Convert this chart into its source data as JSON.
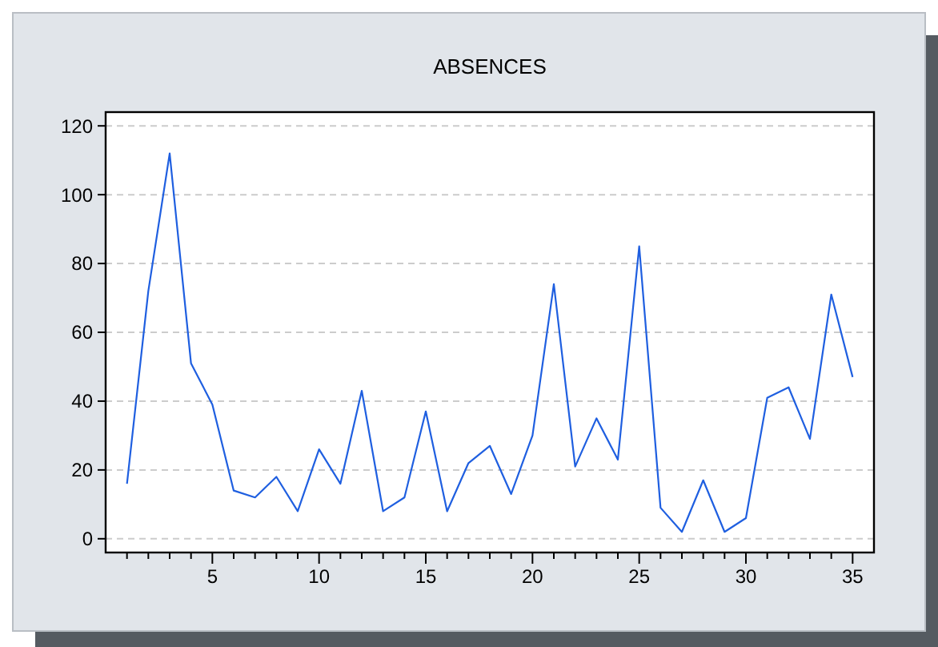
{
  "chart_data": {
    "type": "line",
    "title": "ABSENCES",
    "x": [
      1,
      2,
      3,
      4,
      5,
      6,
      7,
      8,
      9,
      10,
      11,
      12,
      13,
      14,
      15,
      16,
      17,
      18,
      19,
      20,
      21,
      22,
      23,
      24,
      25,
      26,
      27,
      28,
      29,
      30,
      31,
      32,
      33,
      34,
      35
    ],
    "series": [
      {
        "color": "#1f5fe0",
        "values": [
          16,
          72,
          112,
          51,
          39,
          14,
          12,
          18,
          8,
          26,
          16,
          43,
          8,
          12,
          37,
          8,
          22,
          27,
          13,
          30,
          74,
          21,
          35,
          23,
          85,
          9,
          2,
          17,
          2,
          6,
          41,
          44,
          29,
          71,
          47
        ]
      }
    ],
    "xlim": [
      0,
      36
    ],
    "xticks": [
      {
        "value": 1,
        "label": null
      },
      {
        "value": 2,
        "label": null
      },
      {
        "value": 3,
        "label": null
      },
      {
        "value": 4,
        "label": null
      },
      5,
      {
        "value": 6,
        "label": null
      },
      {
        "value": 7,
        "label": null
      },
      {
        "value": 8,
        "label": null
      },
      {
        "value": 9,
        "label": null
      },
      10,
      {
        "value": 11,
        "label": null
      },
      {
        "value": 12,
        "label": null
      },
      {
        "value": 13,
        "label": null
      },
      {
        "value": 14,
        "label": null
      },
      15,
      {
        "value": 16,
        "label": null
      },
      {
        "value": 17,
        "label": null
      },
      {
        "value": 18,
        "label": null
      },
      {
        "value": 19,
        "label": null
      },
      20,
      {
        "value": 21,
        "label": null
      },
      {
        "value": 22,
        "label": null
      },
      {
        "value": 23,
        "label": null
      },
      {
        "value": 24,
        "label": null
      },
      25,
      {
        "value": 26,
        "label": null
      },
      {
        "value": 27,
        "label": null
      },
      {
        "value": 28,
        "label": null
      },
      {
        "value": 29,
        "label": null
      },
      30,
      {
        "value": 31,
        "label": null
      },
      {
        "value": 32,
        "label": null
      },
      {
        "value": 33,
        "label": null
      },
      {
        "value": 34,
        "label": null
      },
      35
    ],
    "ylim": [
      -4,
      124
    ],
    "yticks": [
      0,
      20,
      40,
      60,
      80,
      100,
      120
    ],
    "grid": "y",
    "line_style": "solid"
  }
}
